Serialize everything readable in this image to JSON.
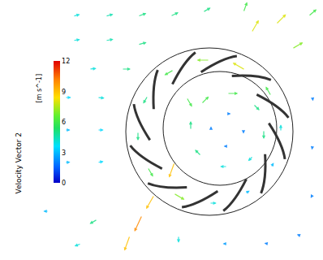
{
  "chart_data": {
    "type": "vector_field",
    "colorbar": {
      "title": "Velocity Vector 2",
      "unit": "[m s^-1]",
      "range": [
        0,
        12
      ],
      "ticks": [
        0,
        3,
        6,
        9,
        12
      ]
    },
    "vectors": [
      [
        90,
        20,
        4,
        15
      ],
      [
        130,
        20,
        4.5,
        15
      ],
      [
        170,
        20,
        5,
        20
      ],
      [
        210,
        20,
        5,
        25
      ],
      [
        250,
        15,
        5,
        30
      ],
      [
        90,
        50,
        4,
        10
      ],
      [
        130,
        50,
        4.5,
        10
      ],
      [
        170,
        55,
        5,
        15
      ],
      [
        110,
        85,
        4,
        5
      ],
      [
        150,
        85,
        5,
        0
      ],
      [
        80,
        120,
        3.5,
        0
      ],
      [
        120,
        120,
        4,
        -5
      ],
      [
        80,
        160,
        3,
        0
      ],
      [
        120,
        160,
        3.5,
        0
      ],
      [
        80,
        200,
        3,
        5
      ],
      [
        120,
        200,
        3.5,
        10
      ],
      [
        190,
        240,
        9,
        -120
      ],
      [
        175,
        265,
        10,
        -115
      ],
      [
        160,
        290,
        9,
        -110
      ],
      [
        120,
        270,
        5,
        -150
      ],
      [
        100,
        300,
        4,
        -160
      ],
      [
        220,
        290,
        4,
        -90
      ],
      [
        60,
        260,
        3,
        180
      ],
      [
        310,
        40,
        8,
        60
      ],
      [
        340,
        30,
        8,
        45
      ],
      [
        360,
        60,
        7,
        30
      ],
      [
        300,
        15,
        6,
        70
      ],
      [
        380,
        20,
        6,
        40
      ],
      [
        385,
        120,
        2,
        -80
      ],
      [
        385,
        180,
        2,
        -100
      ],
      [
        385,
        240,
        2,
        -120
      ],
      [
        280,
        300,
        2.5,
        180
      ],
      [
        330,
        300,
        2,
        170
      ],
      [
        370,
        290,
        2,
        160
      ],
      [
        346,
        162,
        4,
        90
      ],
      [
        334,
        118,
        6,
        120
      ],
      [
        302,
        86,
        8,
        150
      ],
      [
        258,
        74,
        7,
        180
      ],
      [
        214,
        86,
        6,
        210
      ],
      [
        182,
        118,
        5,
        240
      ],
      [
        170,
        162,
        5,
        270
      ],
      [
        182,
        206,
        6,
        300
      ],
      [
        214,
        238,
        7,
        330
      ],
      [
        258,
        250,
        4,
        0
      ],
      [
        302,
        238,
        3,
        30
      ],
      [
        334,
        206,
        3,
        60
      ],
      [
        325,
        160,
        5,
        -90
      ],
      [
        312,
        128,
        5,
        -45
      ],
      [
        280,
        115,
        6,
        0
      ],
      [
        248,
        128,
        6,
        45
      ],
      [
        235,
        160,
        5,
        90
      ],
      [
        248,
        192,
        5,
        135
      ],
      [
        280,
        205,
        4,
        180
      ],
      [
        312,
        192,
        4,
        -135
      ],
      [
        300,
        160,
        2,
        -90
      ],
      [
        280,
        140,
        2,
        0
      ],
      [
        260,
        160,
        2,
        90
      ],
      [
        280,
        180,
        2,
        180
      ],
      [
        285,
        165,
        1,
        0
      ],
      [
        215,
        200,
        9,
        -110
      ],
      [
        230,
        120,
        6,
        -60
      ]
    ]
  }
}
